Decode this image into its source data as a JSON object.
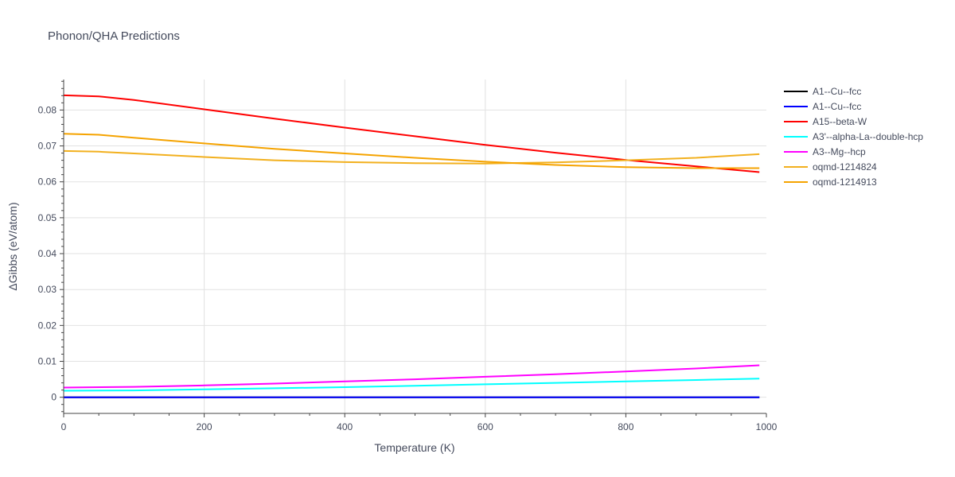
{
  "chart_data": {
    "type": "line",
    "title": "Phonon/QHA Predictions",
    "xlabel": "Temperature (K)",
    "ylabel": "ΔGibbs (eV/atom)",
    "xlim": [
      0,
      1000
    ],
    "ylim": [
      -0.0045,
      0.0885
    ],
    "x_ticks": [
      0,
      200,
      400,
      600,
      800,
      1000
    ],
    "x_tick_labels": [
      "0",
      "200",
      "400",
      "600",
      "800",
      "1000"
    ],
    "y_ticks": [
      0,
      0.01,
      0.02,
      0.03,
      0.04,
      0.05,
      0.06,
      0.07,
      0.08
    ],
    "y_tick_labels": [
      "0",
      "0.01",
      "0.02",
      "0.03",
      "0.04",
      "0.05",
      "0.06",
      "0.07",
      "0.08"
    ],
    "grid": true,
    "legend_position": "top-right",
    "series": [
      {
        "name": "A1--Cu--fcc",
        "color": "#000000",
        "x": [
          0,
          990
        ],
        "y": [
          0,
          0
        ]
      },
      {
        "name": "A1--Cu--fcc",
        "color": "#0000ff",
        "x": [
          0,
          990
        ],
        "y": [
          0,
          0
        ]
      },
      {
        "name": "A15--beta-W",
        "color": "#ff0000",
        "x": [
          0,
          50,
          100,
          200,
          300,
          400,
          500,
          600,
          700,
          800,
          900,
          990
        ],
        "y": [
          0.0841,
          0.0838,
          0.0828,
          0.0802,
          0.0776,
          0.0751,
          0.0727,
          0.0703,
          0.0681,
          0.0661,
          0.0643,
          0.0627
        ]
      },
      {
        "name": "A3'--alpha-La--double-hcp",
        "color": "#00ffff",
        "x": [
          0,
          100,
          200,
          300,
          400,
          500,
          600,
          700,
          800,
          900,
          990
        ],
        "y": [
          0.0018,
          0.0019,
          0.0022,
          0.0025,
          0.0028,
          0.0032,
          0.0036,
          0.004,
          0.0044,
          0.0048,
          0.0052
        ]
      },
      {
        "name": "A3--Mg--hcp",
        "color": "#ff00ff",
        "x": [
          0,
          100,
          200,
          300,
          400,
          500,
          600,
          700,
          800,
          900,
          990
        ],
        "y": [
          0.0027,
          0.0029,
          0.0033,
          0.0038,
          0.0044,
          0.005,
          0.0057,
          0.0064,
          0.0072,
          0.008,
          0.0089
        ]
      },
      {
        "name": "oqmd-1214824",
        "color": "#f2b01e",
        "x": [
          0,
          50,
          100,
          200,
          300,
          400,
          500,
          600,
          700,
          800,
          900,
          990
        ],
        "y": [
          0.0686,
          0.0684,
          0.0679,
          0.0669,
          0.066,
          0.0655,
          0.0652,
          0.0651,
          0.0654,
          0.066,
          0.0667,
          0.0677
        ]
      },
      {
        "name": "oqmd-1214913",
        "color": "#f5a300",
        "x": [
          0,
          50,
          100,
          200,
          300,
          400,
          500,
          600,
          700,
          800,
          900,
          990
        ],
        "y": [
          0.0734,
          0.0731,
          0.0723,
          0.0707,
          0.0692,
          0.0679,
          0.0667,
          0.0656,
          0.0647,
          0.0641,
          0.0638,
          0.0638
        ]
      }
    ]
  }
}
